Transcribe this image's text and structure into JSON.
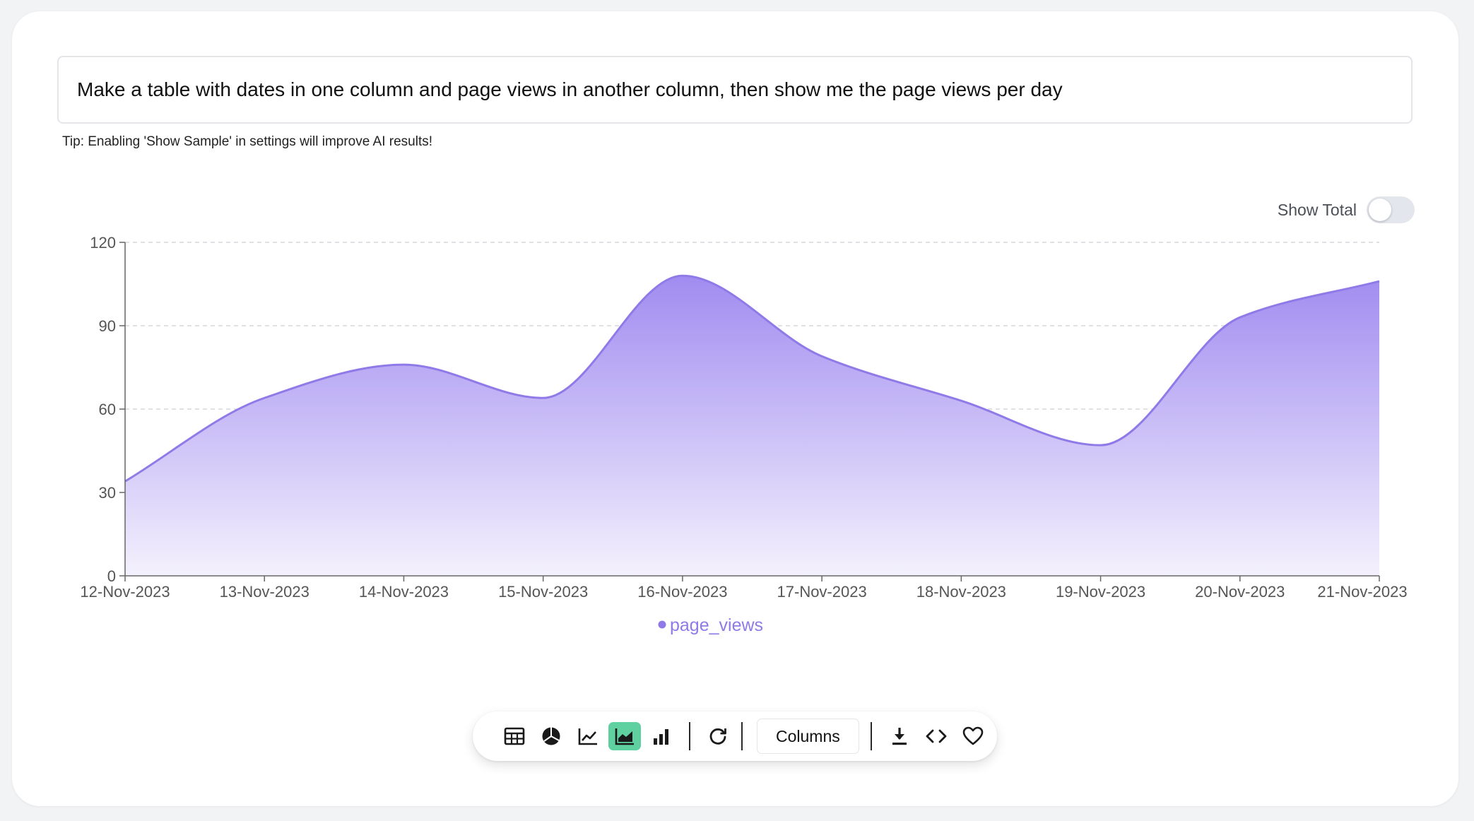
{
  "prompt": {
    "text": "Make a table with dates in one column and page views in another column, then show me the page views per day"
  },
  "tip": "Tip: Enabling 'Show Sample' in settings will improve AI results!",
  "show_total": {
    "label": "Show Total",
    "enabled": false
  },
  "toolbar": {
    "columns_label": "Columns",
    "active_view": "area-chart"
  },
  "colors": {
    "accent": "#8f7ae8",
    "fill_top": "#a08cf0",
    "fill_bottom": "#f4f1fd",
    "active_button": "#5fd0a0"
  },
  "chart_data": {
    "type": "area",
    "categories": [
      "12-Nov-2023",
      "13-Nov-2023",
      "14-Nov-2023",
      "15-Nov-2023",
      "16-Nov-2023",
      "17-Nov-2023",
      "18-Nov-2023",
      "19-Nov-2023",
      "20-Nov-2023",
      "21-Nov-2023"
    ],
    "series": [
      {
        "name": "page_views",
        "values": [
          34,
          64,
          76,
          64,
          108,
          79,
          63,
          47,
          93,
          106
        ]
      }
    ],
    "ylim": [
      0,
      120
    ],
    "yticks": [
      0,
      30,
      60,
      90,
      120
    ],
    "grid": true,
    "legend_position": "bottom-center",
    "curve": "smooth"
  }
}
